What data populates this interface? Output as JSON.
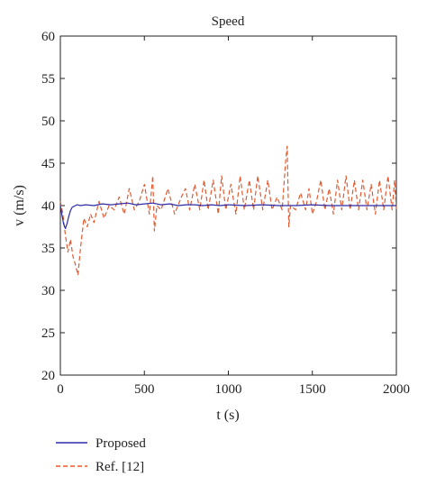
{
  "chart_data": {
    "type": "line",
    "title": "Speed",
    "xlabel": "t (s)",
    "ylabel": "v (m/s)",
    "xlim": [
      0,
      2000
    ],
    "ylim": [
      20,
      60
    ],
    "xticks": [
      0,
      500,
      1000,
      1500,
      2000
    ],
    "yticks": [
      20,
      25,
      30,
      35,
      40,
      45,
      50,
      55,
      60
    ],
    "grid": false,
    "legend_position": "bottom-left, below plot",
    "series": [
      {
        "name": "Proposed",
        "color": "#2b2ba8",
        "style": "solid",
        "x": [
          0,
          10,
          20,
          30,
          40,
          50,
          60,
          70,
          80,
          90,
          100,
          120,
          150,
          200,
          250,
          300,
          350,
          400,
          450,
          500,
          550,
          600,
          650,
          700,
          750,
          800,
          850,
          900,
          950,
          1000,
          1100,
          1200,
          1300,
          1400,
          1500,
          1600,
          1700,
          1800,
          1900,
          2000
        ],
        "y": [
          40.0,
          38.8,
          37.8,
          37.3,
          37.9,
          38.7,
          39.4,
          39.8,
          39.9,
          40.0,
          40.1,
          40.0,
          40.1,
          40.0,
          40.2,
          40.1,
          40.2,
          40.3,
          40.1,
          40.2,
          40.3,
          40.1,
          40.2,
          40.0,
          40.1,
          40.1,
          40.0,
          40.1,
          40.0,
          40.1,
          40.0,
          40.1,
          40.0,
          40.0,
          40.1,
          40.0,
          40.0,
          40.0,
          40.0,
          40.0
        ]
      },
      {
        "name": "Ref. [12]",
        "color": "#e05a30",
        "style": "dashed",
        "x": [
          0,
          15,
          30,
          45,
          60,
          75,
          90,
          105,
          120,
          140,
          160,
          180,
          200,
          230,
          260,
          290,
          320,
          350,
          380,
          410,
          440,
          470,
          500,
          530,
          550,
          560,
          575,
          600,
          640,
          680,
          720,
          745,
          770,
          800,
          830,
          855,
          880,
          910,
          940,
          960,
          985,
          1015,
          1045,
          1070,
          1095,
          1125,
          1150,
          1175,
          1205,
          1235,
          1260,
          1290,
          1320,
          1340,
          1350,
          1360,
          1370,
          1400,
          1430,
          1460,
          1480,
          1500,
          1525,
          1550,
          1575,
          1600,
          1625,
          1650,
          1675,
          1700,
          1725,
          1750,
          1775,
          1800,
          1825,
          1850,
          1875,
          1900,
          1925,
          1950,
          1975,
          1990,
          2000
        ],
        "y": [
          40.5,
          39.0,
          36.5,
          34.5,
          36.0,
          34.0,
          33.0,
          31.8,
          35.0,
          38.5,
          37.5,
          39.0,
          38.0,
          40.5,
          38.5,
          40.0,
          39.5,
          41.0,
          39.0,
          42.0,
          39.5,
          40.5,
          42.5,
          39.0,
          43.5,
          37.0,
          40.0,
          39.5,
          42.0,
          39.0,
          41.0,
          42.0,
          39.5,
          42.5,
          39.5,
          43.0,
          39.5,
          43.0,
          39.0,
          43.5,
          39.5,
          42.5,
          39.0,
          43.5,
          39.5,
          43.0,
          39.5,
          43.5,
          39.5,
          43.0,
          39.5,
          41.0,
          39.5,
          45.0,
          47.0,
          37.5,
          40.0,
          39.5,
          41.5,
          39.5,
          42.0,
          39.0,
          40.5,
          43.0,
          39.5,
          42.0,
          39.0,
          43.0,
          39.5,
          43.5,
          39.5,
          43.0,
          39.5,
          43.0,
          39.5,
          42.5,
          39.0,
          43.0,
          39.5,
          43.5,
          39.5,
          43.0,
          39.5
        ]
      }
    ]
  }
}
